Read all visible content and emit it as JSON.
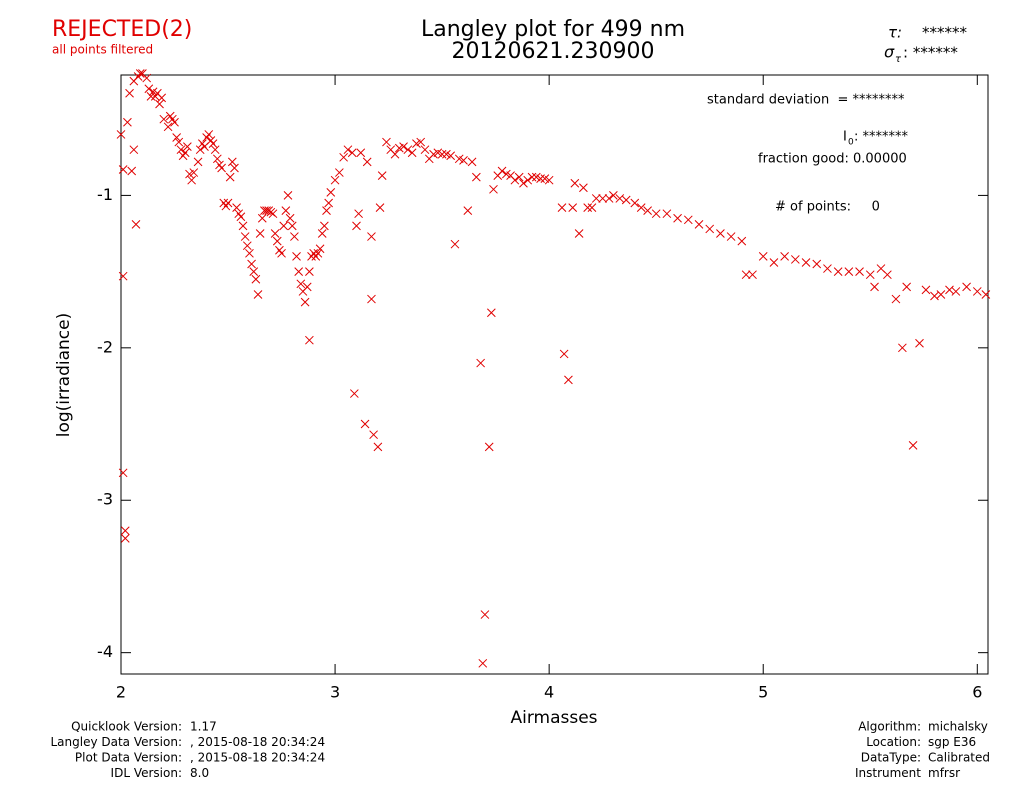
{
  "chart_data": {
    "type": "scatter",
    "title": "Langley plot for 499 nm",
    "subtitle": "20120621.230900",
    "status": "REJECTED(2)",
    "status_note": "all points filtered",
    "tau": {
      "label": "τ:",
      "value": "******"
    },
    "sigma_tau": {
      "label": "σ",
      "sub": "τ",
      "value": ": ******"
    },
    "std_dev": "standard deviation  = ********",
    "i0": {
      "label": "I",
      "sub": "0",
      "value": ": *******"
    },
    "fraction_good": "fraction good: 0.00000",
    "n_points": "# of points:     0",
    "x_label": "Airmasses",
    "y_label": "log(irradiance)",
    "color": "#e00000",
    "xlim": [
      2,
      6.05
    ],
    "ylim": [
      -4.14,
      -0.21
    ],
    "xticks": [
      2,
      3,
      4,
      5,
      6
    ],
    "yticks": [
      -1,
      -2,
      -3,
      -4
    ],
    "x": [
      2.0,
      2.01,
      2.01,
      2.01,
      2.02,
      2.02,
      2.03,
      2.04,
      2.05,
      2.06,
      2.07,
      2.06,
      2.08,
      2.09,
      2.1,
      2.12,
      2.13,
      2.14,
      2.15,
      2.16,
      2.17,
      2.18,
      2.19,
      2.2,
      2.22,
      2.23,
      2.24,
      2.25,
      2.26,
      2.27,
      2.28,
      2.29,
      2.3,
      2.31,
      2.32,
      2.33,
      2.34,
      2.36,
      2.37,
      2.38,
      2.39,
      2.4,
      2.41,
      2.42,
      2.43,
      2.44,
      2.45,
      2.46,
      2.47,
      2.48,
      2.49,
      2.5,
      2.51,
      2.52,
      2.53,
      2.54,
      2.55,
      2.56,
      2.57,
      2.58,
      2.59,
      2.6,
      2.61,
      2.62,
      2.63,
      2.64,
      2.65,
      2.66,
      2.67,
      2.68,
      2.69,
      2.7,
      2.71,
      2.72,
      2.73,
      2.74,
      2.75,
      2.76,
      2.77,
      2.78,
      2.79,
      2.8,
      2.81,
      2.82,
      2.83,
      2.84,
      2.85,
      2.86,
      2.87,
      2.88,
      2.89,
      2.9,
      2.91,
      2.92,
      2.93,
      2.94,
      2.95,
      2.96,
      2.88,
      2.97,
      2.98,
      3.0,
      3.02,
      3.04,
      3.06,
      3.08,
      3.09,
      3.1,
      3.11,
      3.12,
      3.14,
      3.15,
      3.17,
      3.17,
      3.18,
      3.2,
      3.21,
      3.22,
      3.24,
      3.26,
      3.28,
      3.3,
      3.32,
      3.34,
      3.36,
      3.38,
      3.4,
      3.42,
      3.44,
      3.46,
      3.48,
      3.5,
      3.52,
      3.54,
      3.56,
      3.58,
      3.6,
      3.62,
      3.64,
      3.66,
      3.68,
      3.69,
      3.7,
      3.72,
      3.73,
      3.74,
      3.76,
      3.78,
      3.8,
      3.82,
      3.84,
      3.86,
      3.88,
      3.9,
      3.92,
      3.94,
      3.96,
      3.98,
      4.0,
      4.06,
      4.07,
      4.09,
      4.11,
      4.12,
      4.14,
      4.16,
      4.18,
      4.2,
      4.22,
      4.25,
      4.28,
      4.3,
      4.33,
      4.36,
      4.4,
      4.43,
      4.46,
      4.5,
      4.55,
      4.6,
      4.65,
      4.7,
      4.75,
      4.8,
      4.85,
      4.9,
      4.92,
      4.95,
      5.0,
      5.05,
      5.1,
      5.15,
      5.2,
      5.25,
      5.3,
      5.35,
      5.4,
      5.45,
      5.5,
      5.52,
      5.55,
      5.58,
      5.62,
      5.65,
      5.67,
      5.7,
      5.73,
      5.76,
      5.8,
      5.83,
      5.87,
      5.9,
      5.95,
      6.0,
      6.04
    ],
    "y": [
      -0.6,
      -0.83,
      -1.53,
      -2.82,
      -3.2,
      -3.25,
      -0.52,
      -0.33,
      -0.84,
      -0.7,
      -1.19,
      -0.25,
      -0.22,
      -0.2,
      -0.2,
      -0.23,
      -0.3,
      -0.35,
      -0.32,
      -0.35,
      -0.33,
      -0.4,
      -0.36,
      -0.5,
      -0.55,
      -0.48,
      -0.5,
      -0.52,
      -0.62,
      -0.65,
      -0.7,
      -0.74,
      -0.72,
      -0.68,
      -0.86,
      -0.9,
      -0.85,
      -0.78,
      -0.7,
      -0.66,
      -0.68,
      -0.62,
      -0.6,
      -0.64,
      -0.66,
      -0.7,
      -0.76,
      -0.8,
      -0.82,
      -1.05,
      -1.07,
      -1.05,
      -0.88,
      -0.78,
      -0.82,
      -1.08,
      -1.12,
      -1.14,
      -1.2,
      -1.27,
      -1.33,
      -1.38,
      -1.45,
      -1.5,
      -1.55,
      -1.65,
      -1.25,
      -1.15,
      -1.1,
      -1.1,
      -1.1,
      -1.11,
      -1.12,
      -1.25,
      -1.3,
      -1.36,
      -1.38,
      -1.2,
      -1.1,
      -1.0,
      -1.15,
      -1.2,
      -1.27,
      -1.4,
      -1.5,
      -1.58,
      -1.63,
      -1.7,
      -1.6,
      -1.5,
      -1.4,
      -1.38,
      -1.4,
      -1.38,
      -1.35,
      -1.25,
      -1.2,
      -1.1,
      -1.95,
      -1.05,
      -0.98,
      -0.9,
      -0.85,
      -0.75,
      -0.7,
      -0.72,
      -2.3,
      -1.2,
      -1.12,
      -0.72,
      -2.5,
      -0.78,
      -1.27,
      -1.68,
      -2.57,
      -2.65,
      -1.08,
      -0.87,
      -0.65,
      -0.7,
      -0.73,
      -0.69,
      -0.68,
      -0.7,
      -0.72,
      -0.66,
      -0.65,
      -0.7,
      -0.76,
      -0.73,
      -0.72,
      -0.73,
      -0.73,
      -0.74,
      -1.32,
      -0.76,
      -0.77,
      -1.1,
      -0.78,
      -0.88,
      -2.1,
      -4.07,
      -3.75,
      -2.65,
      -1.77,
      -0.96,
      -0.87,
      -0.84,
      -0.86,
      -0.87,
      -0.9,
      -0.88,
      -0.92,
      -0.9,
      -0.88,
      -0.88,
      -0.89,
      -0.89,
      -0.9,
      -1.08,
      -2.04,
      -2.21,
      -1.08,
      -0.92,
      -1.25,
      -0.95,
      -1.08,
      -1.08,
      -1.02,
      -1.02,
      -1.02,
      -1.0,
      -1.02,
      -1.03,
      -1.05,
      -1.08,
      -1.1,
      -1.12,
      -1.12,
      -1.15,
      -1.16,
      -1.19,
      -1.22,
      -1.25,
      -1.27,
      -1.3,
      -1.52,
      -1.52,
      -1.4,
      -1.44,
      -1.4,
      -1.42,
      -1.44,
      -1.45,
      -1.48,
      -1.5,
      -1.5,
      -1.5,
      -1.52,
      -1.6,
      -1.48,
      -1.52,
      -1.68,
      -2.0,
      -1.6,
      -2.64,
      -1.97,
      -1.62,
      -1.66,
      -1.65,
      -1.62,
      -1.63,
      -1.6,
      -1.63,
      -1.65
    ],
    "footer_left": [
      [
        "Quicklook Version:",
        "1.17"
      ],
      [
        "Langley Data Version:",
        ", 2015-08-18 20:34:24"
      ],
      [
        "Plot Data Version:",
        ", 2015-08-18 20:34:24"
      ],
      [
        "IDL Version:",
        "8.0"
      ]
    ],
    "footer_right": [
      [
        "Algorithm:",
        "michalsky"
      ],
      [
        "Location:",
        "sgp E36"
      ],
      [
        "DataType:",
        "Calibrated"
      ],
      [
        "Instrument",
        "mfrsr"
      ]
    ]
  }
}
